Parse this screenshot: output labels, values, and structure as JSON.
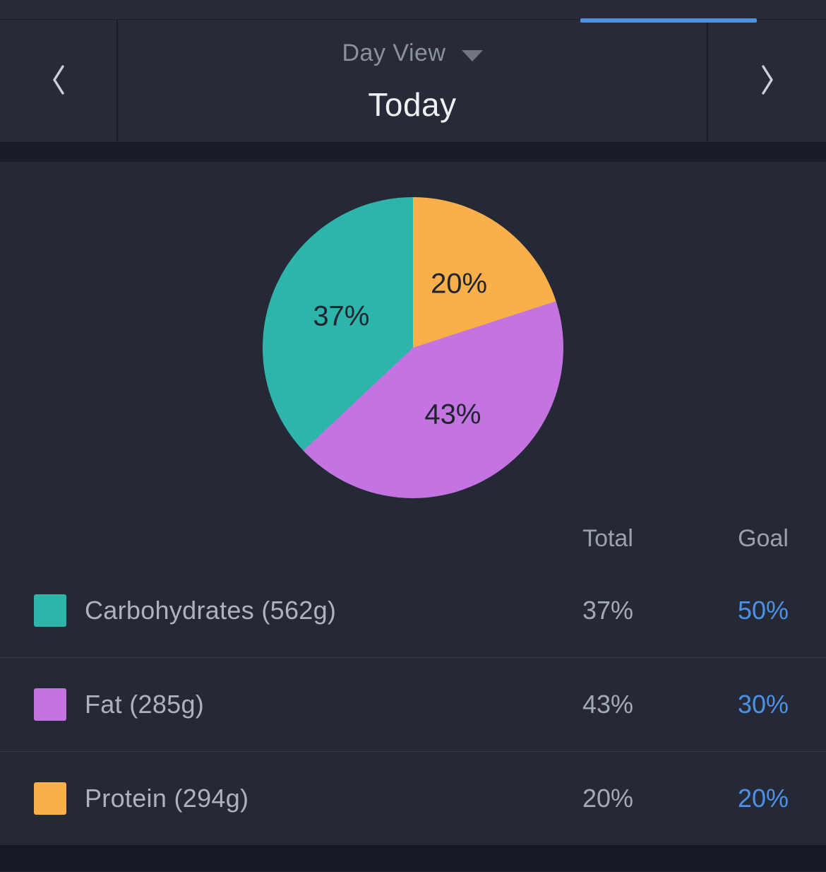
{
  "tabs": {
    "active_indicator_color": "#4d91e6"
  },
  "header": {
    "view_label": "Day View",
    "date_label": "Today"
  },
  "chart_data": {
    "type": "pie",
    "start_angle": "top",
    "direction": "clockwise",
    "radius_px": 213,
    "label_radius_ratio": 0.52,
    "label_color": "#20242f",
    "segments": [
      {
        "name": "Protein",
        "value_percent": 20,
        "label": "20%",
        "color": "#f9b04b"
      },
      {
        "name": "Fat",
        "value_percent": 43,
        "label": "43%",
        "color": "#c474e0"
      },
      {
        "name": "Carbohydrates",
        "value_percent": 37,
        "label": "37%",
        "color": "#2db5ab"
      }
    ]
  },
  "table": {
    "columns": {
      "total": "Total",
      "goal": "Goal"
    },
    "goal_value_color": "#4d91e6",
    "rows": [
      {
        "label": "Carbohydrates (562g)",
        "swatch_color": "#2db5ab",
        "total": "37%",
        "goal": "50%"
      },
      {
        "label": "Fat (285g)",
        "swatch_color": "#c474e0",
        "total": "43%",
        "goal": "30%"
      },
      {
        "label": "Protein (294g)",
        "swatch_color": "#f9b04b",
        "total": "20%",
        "goal": "20%"
      }
    ]
  }
}
